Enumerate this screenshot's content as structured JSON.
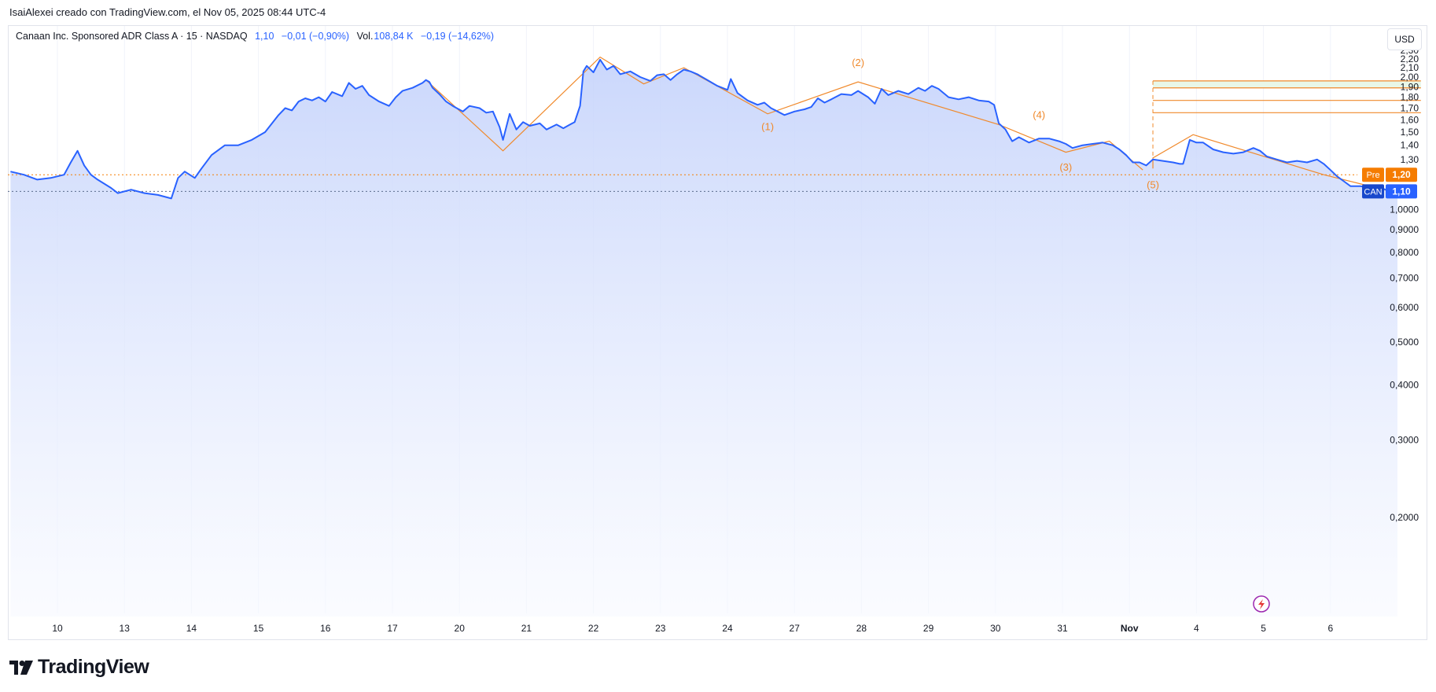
{
  "attribution": "IsaiAlexei creado con TradingView.com, el Nov 05, 2025 08:44 UTC-4",
  "legend": {
    "symbol": "Canaan Inc. Sponsored ADR Class A · 15 · NASDAQ",
    "price": "1,10",
    "change": "−0,01 (−0,90%)",
    "vol_label": "Vol.",
    "vol_value": "108,84 K",
    "vol_change": "−0,19 (−14,62%)"
  },
  "currency_button": "USD",
  "brand": "TradingView",
  "colors": {
    "line": "#2962ff",
    "area_top": "#c5d3fb",
    "area_bottom": "#f7f9ff",
    "pattern": "#f0892b",
    "pre_badge": "#f57c00",
    "can_badge": "#2962ff",
    "target_zone": "#e8f7e8"
  },
  "chart_data": {
    "type": "area",
    "y_scale": "log",
    "ylim": [
      0.18,
      2.4
    ],
    "y_ticks": [
      {
        "v": 2.3,
        "label": "2,30"
      },
      {
        "v": 2.2,
        "label": "2,20"
      },
      {
        "v": 2.1,
        "label": "2,10"
      },
      {
        "v": 2.0,
        "label": "2,00"
      },
      {
        "v": 1.9,
        "label": "1,90"
      },
      {
        "v": 1.8,
        "label": "1,80"
      },
      {
        "v": 1.7,
        "label": "1,70"
      },
      {
        "v": 1.6,
        "label": "1,60"
      },
      {
        "v": 1.5,
        "label": "1,50"
      },
      {
        "v": 1.4,
        "label": "1,40"
      },
      {
        "v": 1.3,
        "label": "1,30"
      },
      {
        "v": 1.0,
        "label": "1,0000"
      },
      {
        "v": 0.9,
        "label": "0,9000"
      },
      {
        "v": 0.8,
        "label": "0,8000"
      },
      {
        "v": 0.7,
        "label": "0,7000"
      },
      {
        "v": 0.6,
        "label": "0,6000"
      },
      {
        "v": 0.5,
        "label": "0,5000"
      },
      {
        "v": 0.4,
        "label": "0,4000"
      },
      {
        "v": 0.3,
        "label": "0,3000"
      },
      {
        "v": 0.2,
        "label": "0,2000"
      }
    ],
    "x_ticks": [
      "10",
      "13",
      "14",
      "15",
      "16",
      "17",
      "20",
      "21",
      "22",
      "23",
      "24",
      "27",
      "28",
      "29",
      "30",
      "31",
      "Nov",
      "4",
      "5",
      "6"
    ],
    "x_range": [
      -0.7,
      19.3
    ],
    "series": [
      {
        "points": [
          [
            -0.7,
            1.22
          ],
          [
            -0.5,
            1.2
          ],
          [
            -0.3,
            1.17
          ],
          [
            -0.1,
            1.18
          ],
          [
            0.1,
            1.2
          ],
          [
            0.2,
            1.28
          ],
          [
            0.3,
            1.36
          ],
          [
            0.4,
            1.26
          ],
          [
            0.5,
            1.2
          ],
          [
            0.6,
            1.17
          ],
          [
            0.8,
            1.12
          ],
          [
            0.9,
            1.09
          ],
          [
            1.1,
            1.11
          ],
          [
            1.3,
            1.09
          ],
          [
            1.5,
            1.08
          ],
          [
            1.7,
            1.06
          ],
          [
            1.8,
            1.18
          ],
          [
            1.9,
            1.22
          ],
          [
            2.05,
            1.18
          ],
          [
            2.15,
            1.24
          ],
          [
            2.3,
            1.33
          ],
          [
            2.5,
            1.4
          ],
          [
            2.7,
            1.4
          ],
          [
            2.9,
            1.44
          ],
          [
            3.1,
            1.5
          ],
          [
            3.3,
            1.64
          ],
          [
            3.4,
            1.7
          ],
          [
            3.5,
            1.68
          ],
          [
            3.6,
            1.76
          ],
          [
            3.7,
            1.79
          ],
          [
            3.8,
            1.77
          ],
          [
            3.9,
            1.8
          ],
          [
            4.0,
            1.76
          ],
          [
            4.1,
            1.85
          ],
          [
            4.25,
            1.81
          ],
          [
            4.35,
            1.94
          ],
          [
            4.45,
            1.88
          ],
          [
            4.55,
            1.91
          ],
          [
            4.65,
            1.82
          ],
          [
            4.8,
            1.76
          ],
          [
            4.95,
            1.72
          ],
          [
            5.05,
            1.8
          ],
          [
            5.15,
            1.86
          ],
          [
            5.3,
            1.89
          ],
          [
            5.45,
            1.94
          ],
          [
            5.5,
            1.97
          ],
          [
            5.55,
            1.95
          ],
          [
            5.6,
            1.89
          ],
          [
            5.7,
            1.83
          ],
          [
            5.8,
            1.76
          ],
          [
            5.9,
            1.72
          ],
          [
            6.05,
            1.67
          ],
          [
            6.15,
            1.72
          ],
          [
            6.3,
            1.7
          ],
          [
            6.4,
            1.66
          ],
          [
            6.5,
            1.67
          ],
          [
            6.6,
            1.54
          ],
          [
            6.65,
            1.44
          ],
          [
            6.75,
            1.65
          ],
          [
            6.85,
            1.52
          ],
          [
            6.95,
            1.58
          ],
          [
            7.05,
            1.55
          ],
          [
            7.2,
            1.57
          ],
          [
            7.3,
            1.52
          ],
          [
            7.45,
            1.56
          ],
          [
            7.55,
            1.53
          ],
          [
            7.65,
            1.56
          ],
          [
            7.72,
            1.58
          ],
          [
            7.8,
            1.72
          ],
          [
            7.85,
            2.06
          ],
          [
            7.9,
            2.12
          ],
          [
            8.0,
            2.05
          ],
          [
            8.1,
            2.19
          ],
          [
            8.2,
            2.08
          ],
          [
            8.3,
            2.12
          ],
          [
            8.4,
            2.03
          ],
          [
            8.55,
            2.06
          ],
          [
            8.7,
            2.0
          ],
          [
            8.85,
            1.96
          ],
          [
            8.95,
            2.02
          ],
          [
            9.05,
            2.03
          ],
          [
            9.15,
            1.97
          ],
          [
            9.25,
            2.03
          ],
          [
            9.35,
            2.08
          ],
          [
            9.45,
            2.06
          ],
          [
            9.55,
            2.03
          ],
          [
            9.7,
            1.97
          ],
          [
            9.85,
            1.91
          ],
          [
            10.0,
            1.87
          ],
          [
            10.05,
            1.98
          ],
          [
            10.15,
            1.84
          ],
          [
            10.3,
            1.77
          ],
          [
            10.45,
            1.73
          ],
          [
            10.55,
            1.75
          ],
          [
            10.65,
            1.7
          ],
          [
            10.75,
            1.67
          ],
          [
            10.85,
            1.64
          ],
          [
            11.0,
            1.67
          ],
          [
            11.15,
            1.69
          ],
          [
            11.25,
            1.71
          ],
          [
            11.35,
            1.79
          ],
          [
            11.45,
            1.75
          ],
          [
            11.55,
            1.78
          ],
          [
            11.7,
            1.83
          ],
          [
            11.85,
            1.82
          ],
          [
            11.95,
            1.86
          ],
          [
            12.1,
            1.8
          ],
          [
            12.2,
            1.74
          ],
          [
            12.3,
            1.88
          ],
          [
            12.4,
            1.82
          ],
          [
            12.55,
            1.86
          ],
          [
            12.7,
            1.83
          ],
          [
            12.85,
            1.89
          ],
          [
            12.95,
            1.86
          ],
          [
            13.05,
            1.91
          ],
          [
            13.15,
            1.88
          ],
          [
            13.3,
            1.8
          ],
          [
            13.45,
            1.78
          ],
          [
            13.6,
            1.8
          ],
          [
            13.75,
            1.77
          ],
          [
            13.9,
            1.76
          ],
          [
            13.98,
            1.73
          ],
          [
            14.05,
            1.57
          ],
          [
            14.15,
            1.52
          ],
          [
            14.25,
            1.43
          ],
          [
            14.35,
            1.46
          ],
          [
            14.5,
            1.42
          ],
          [
            14.65,
            1.45
          ],
          [
            14.8,
            1.45
          ],
          [
            14.95,
            1.43
          ],
          [
            15.05,
            1.41
          ],
          [
            15.15,
            1.38
          ],
          [
            15.3,
            1.4
          ],
          [
            15.45,
            1.41
          ],
          [
            15.6,
            1.42
          ],
          [
            15.75,
            1.4
          ],
          [
            15.85,
            1.37
          ],
          [
            15.95,
            1.33
          ],
          [
            16.05,
            1.28
          ],
          [
            16.15,
            1.28
          ],
          [
            16.25,
            1.26
          ],
          [
            16.35,
            1.3
          ],
          [
            16.5,
            1.29
          ],
          [
            16.65,
            1.28
          ],
          [
            16.75,
            1.27
          ],
          [
            16.8,
            1.27
          ],
          [
            16.9,
            1.44
          ],
          [
            17.0,
            1.42
          ],
          [
            17.1,
            1.42
          ],
          [
            17.25,
            1.37
          ],
          [
            17.4,
            1.35
          ],
          [
            17.55,
            1.34
          ],
          [
            17.7,
            1.35
          ],
          [
            17.85,
            1.38
          ],
          [
            17.95,
            1.36
          ],
          [
            18.05,
            1.32
          ],
          [
            18.2,
            1.3
          ],
          [
            18.35,
            1.28
          ],
          [
            18.5,
            1.29
          ],
          [
            18.65,
            1.28
          ],
          [
            18.8,
            1.3
          ],
          [
            18.9,
            1.27
          ],
          [
            19.0,
            1.23
          ],
          [
            19.1,
            1.19
          ],
          [
            19.2,
            1.16
          ],
          [
            19.3,
            1.13
          ],
          [
            19.45,
            1.13
          ],
          [
            19.6,
            1.12
          ],
          [
            19.75,
            1.12
          ],
          [
            19.9,
            1.1
          ],
          [
            20.0,
            1.1
          ]
        ]
      }
    ],
    "last_price": {
      "value": 1.1,
      "label": "CAN",
      "value_label": "1,10"
    },
    "pre_market": {
      "value": 1.2,
      "label": "Pre",
      "value_label": "1,20"
    },
    "wave_labels": [
      {
        "text": "(1)",
        "x": 10.6,
        "y": 1.515
      },
      {
        "text": "(2)",
        "x": 11.95,
        "y": 2.12
      },
      {
        "text": "(3)",
        "x": 15.05,
        "y": 1.225
      },
      {
        "text": "(4)",
        "x": 14.65,
        "y": 1.61
      },
      {
        "text": "(5)",
        "x": 16.35,
        "y": 1.118
      }
    ],
    "pattern_lines": [
      [
        [
          5.5,
          1.97
        ],
        [
          6.65,
          1.36
        ],
        [
          8.1,
          2.22
        ],
        [
          8.75,
          1.93
        ],
        [
          9.35,
          2.1
        ],
        [
          10.6,
          1.65
        ],
        [
          11.95,
          1.95
        ],
        [
          14.05,
          1.56
        ],
        [
          15.05,
          1.35
        ],
        [
          15.7,
          1.43
        ],
        [
          16.2,
          1.23
        ]
      ],
      [
        [
          16.35,
          1.24
        ],
        [
          16.35,
          1.31
        ],
        [
          16.95,
          1.48
        ],
        [
          18.9,
          1.2
        ],
        [
          19.9,
          1.1
        ]
      ]
    ],
    "target_levels": [
      1.96,
      1.89,
      1.77,
      1.66
    ],
    "target_zone_range": [
      16.35,
      20.35
    ]
  }
}
